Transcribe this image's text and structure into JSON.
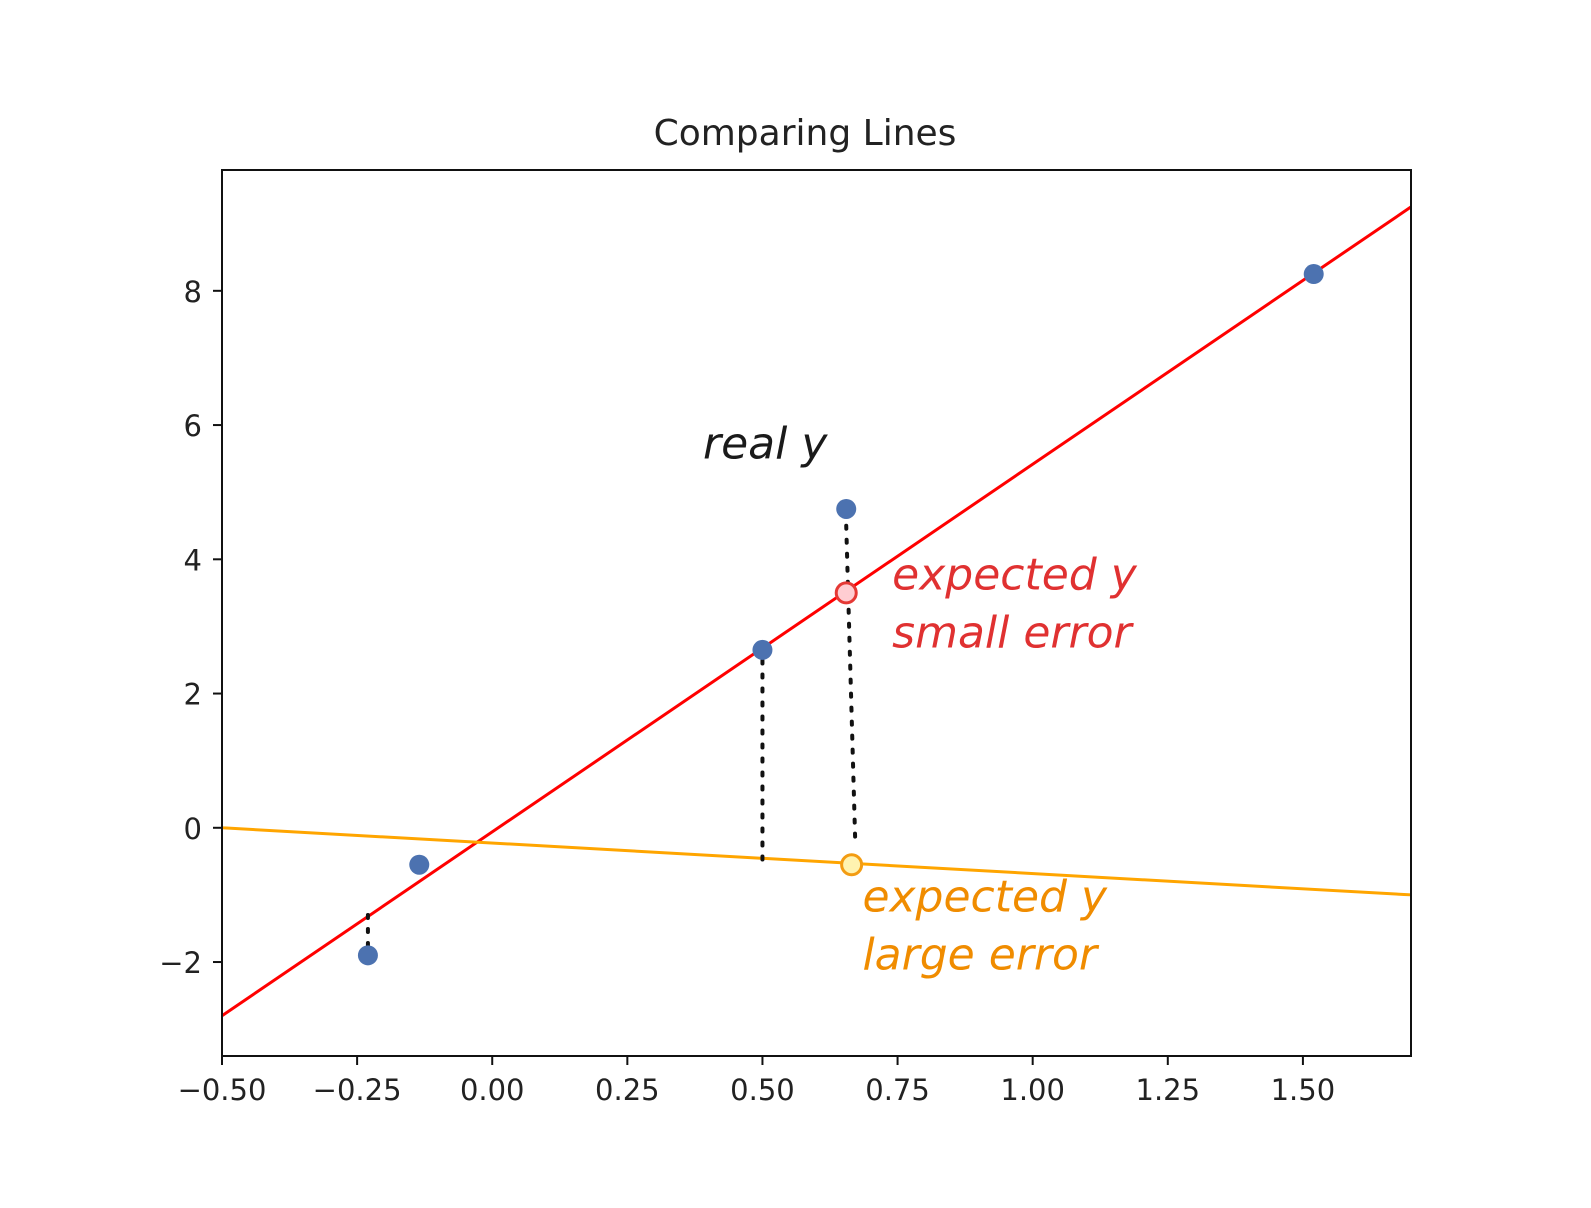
{
  "chart_data": {
    "type": "scatter",
    "title": "Comparing Lines",
    "xlabel": "",
    "ylabel": "",
    "xlim": [
      -0.5,
      1.7
    ],
    "ylim": [
      -3.4,
      9.8
    ],
    "xticks": [
      -0.5,
      -0.25,
      0.0,
      0.25,
      0.5,
      0.75,
      1.0,
      1.25,
      1.5
    ],
    "xtick_labels": [
      "−0.50",
      "−0.25",
      "0.00",
      "0.25",
      "0.50",
      "0.75",
      "1.00",
      "1.25",
      "1.50"
    ],
    "yticks": [
      -2,
      0,
      2,
      4,
      6,
      8
    ],
    "ytick_labels": [
      "−2",
      "0",
      "2",
      "4",
      "6",
      "8"
    ],
    "grid": false,
    "points": {
      "color": "#4c72b0",
      "x": [
        -0.23,
        -0.135,
        0.5,
        0.655,
        1.52
      ],
      "y": [
        -1.9,
        -0.55,
        2.65,
        4.75,
        8.25
      ]
    },
    "lines": [
      {
        "color": "#ff0000",
        "x": [
          -0.5,
          1.7
        ],
        "y": [
          -2.8,
          9.25
        ]
      },
      {
        "color": "#ffa500",
        "x": [
          -0.5,
          1.7
        ],
        "y": [
          0.0,
          -1.0
        ]
      }
    ],
    "residuals": [
      {
        "x": -0.23,
        "y_from": -1.3,
        "y_to": -1.85
      },
      {
        "x": 0.5,
        "y_from": 2.7,
        "y_to": -0.5
      },
      {
        "x": 0.655,
        "y_from": 4.5,
        "y_to": -0.2
      }
    ],
    "markers": [
      {
        "x": 0.655,
        "y": 3.5,
        "edge": "#e53935",
        "fill": "#ffcdd2"
      },
      {
        "x": 0.665,
        "y": -0.55,
        "edge": "#f39c12",
        "fill": "#fff3b0"
      }
    ],
    "annotations": [
      {
        "lines": [
          "real y"
        ],
        "x": 0.39,
        "y": 5.5,
        "color": "#1a1a1a"
      },
      {
        "lines": [
          "expected y",
          "small error"
        ],
        "x": 0.74,
        "y": 3.55,
        "color": "#e03131"
      },
      {
        "lines": [
          "expected y",
          "large error"
        ],
        "x": 0.685,
        "y": -1.25,
        "color": "#f08c00"
      }
    ]
  }
}
